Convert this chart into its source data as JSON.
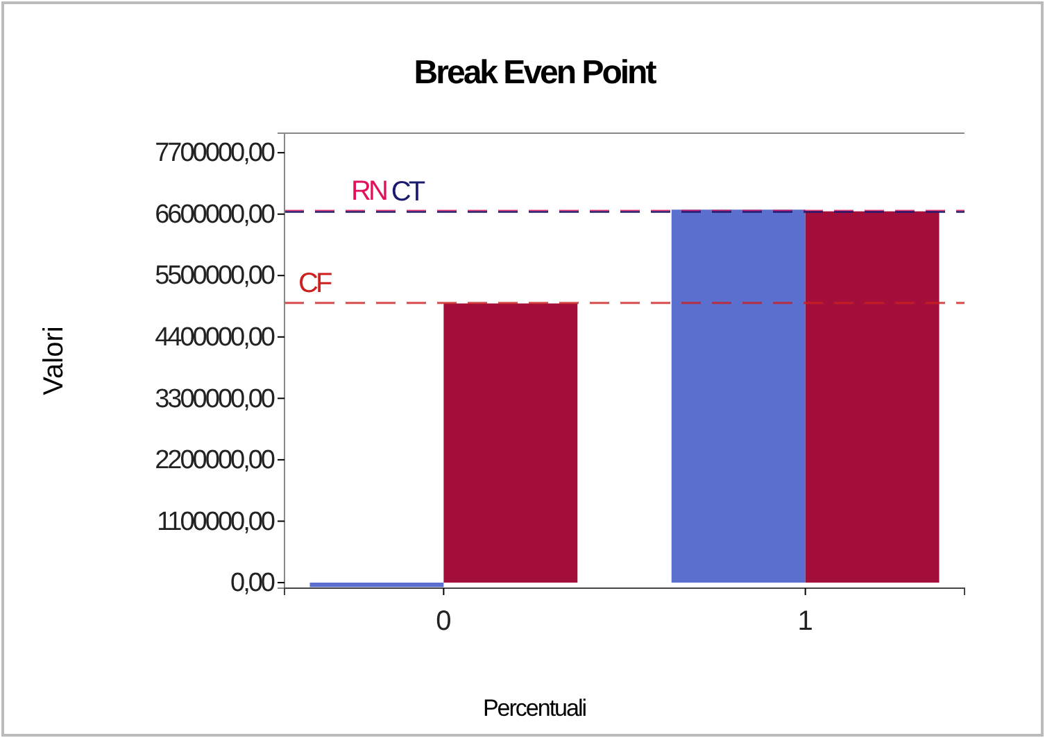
{
  "chart_data": {
    "type": "bar",
    "title": "Break Even Point",
    "xlabel": "Percentuali",
    "ylabel": "Valori",
    "categories": [
      "0",
      "1"
    ],
    "series": [
      {
        "color": "#5b6fcf",
        "values": [
          -80000,
          6680000
        ]
      },
      {
        "color": "#a30f3a",
        "values": [
          5000000,
          6650000
        ]
      }
    ],
    "ylim": [
      -100000,
      8050000
    ],
    "yticks": [
      {
        "value": 0,
        "label": "0,00"
      },
      {
        "value": 1100000,
        "label": "1100000,00"
      },
      {
        "value": 2200000,
        "label": "2200000,00"
      },
      {
        "value": 3300000,
        "label": "3300000,00"
      },
      {
        "value": 4400000,
        "label": "4400000,00"
      },
      {
        "value": 5500000,
        "label": "5500000,00"
      },
      {
        "value": 6600000,
        "label": "6600000,00"
      },
      {
        "value": 7700000,
        "label": "7700000,00"
      }
    ],
    "ref_lines": [
      {
        "axis": "y",
        "value": 6660000,
        "label": "RN",
        "color": "#e0105a",
        "line_style": "dashed"
      },
      {
        "axis": "y",
        "value": 6640000,
        "label": "CT",
        "color": "#1a1a6e",
        "line_style": "dashed"
      },
      {
        "axis": "y",
        "value": 5010000,
        "label": "CF",
        "color": "#cc2020",
        "line_style": "dashed"
      }
    ]
  }
}
